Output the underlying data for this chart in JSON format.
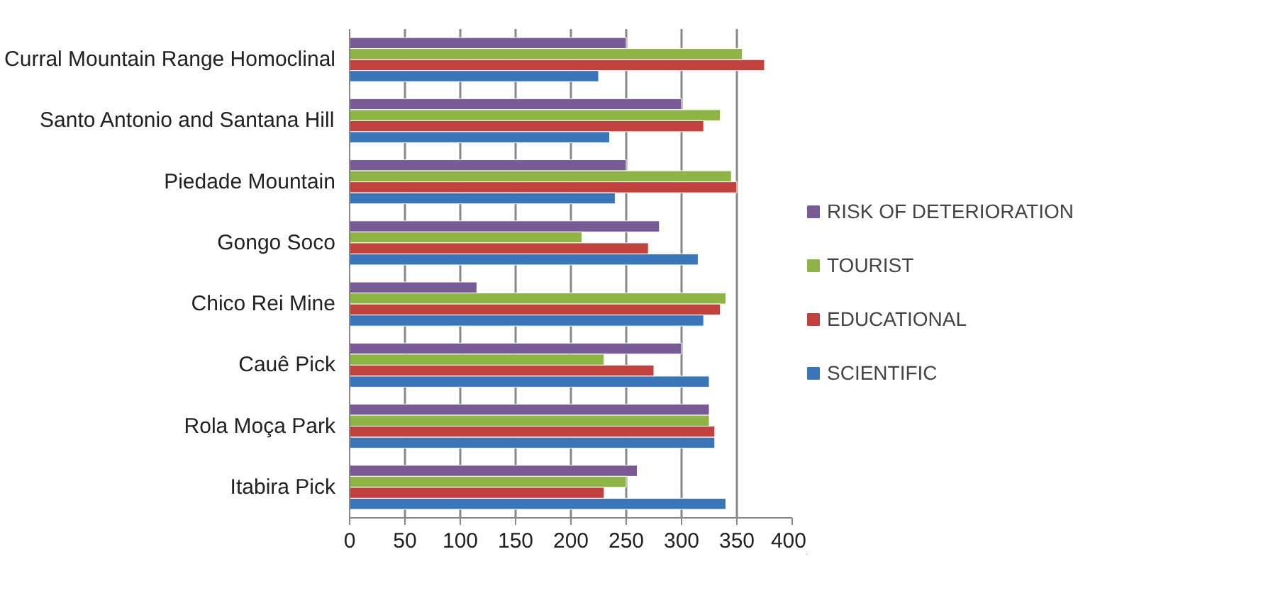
{
  "chart_data": {
    "type": "bar",
    "orientation": "horizontal",
    "categories": [
      "Curral Mountain Range Homoclinal",
      "Santo Antonio and Santana Hill",
      "Piedade Mountain",
      "Gongo Soco",
      "Chico Rei Mine",
      "Cauê Pick",
      "Rola Moça Park",
      "Itabira Pick"
    ],
    "series": [
      {
        "name": "RISK OF DETERIORATION",
        "color": "#775a96",
        "values": [
          250,
          300,
          250,
          280,
          115,
          300,
          325,
          260
        ]
      },
      {
        "name": "TOURIST",
        "color": "#8db445",
        "values": [
          355,
          335,
          345,
          210,
          340,
          230,
          325,
          250
        ]
      },
      {
        "name": "EDUCATIONAL",
        "color": "#c0413e",
        "values": [
          375,
          320,
          350,
          270,
          335,
          275,
          330,
          230
        ]
      },
      {
        "name": "SCIENTIFIC",
        "color": "#3a75b9",
        "values": [
          225,
          235,
          240,
          315,
          320,
          325,
          330,
          340
        ]
      }
    ],
    "xlim": [
      0,
      400
    ],
    "xticks": [
      0,
      50,
      100,
      150,
      200,
      250,
      300,
      350,
      400
    ],
    "grid": "x",
    "legend": "right"
  }
}
